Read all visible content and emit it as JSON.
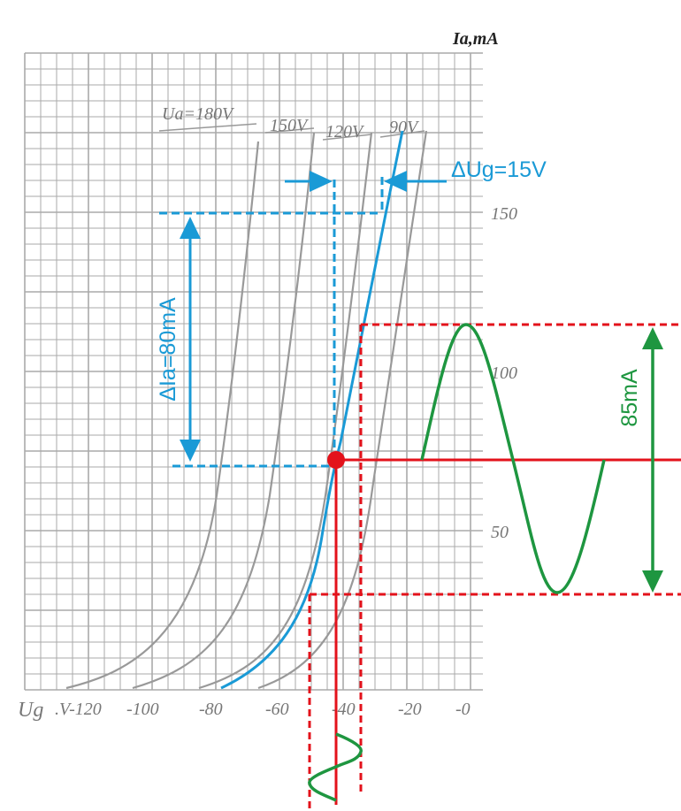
{
  "axis": {
    "y_title": "Ia,mA",
    "x_title": "Ug",
    "x_ticks": [
      ".V-120",
      "-100",
      "-80",
      "-60",
      "-40",
      "-20",
      "-0"
    ],
    "y_ticks": [
      "150",
      "100",
      "50"
    ]
  },
  "curves": [
    "Ua=180V",
    "150V",
    "120V",
    "90V"
  ],
  "annotations": {
    "delta_ia": "ΔIa=80mA",
    "delta_ug": "ΔUg=15V",
    "swing": "85mA"
  }
}
